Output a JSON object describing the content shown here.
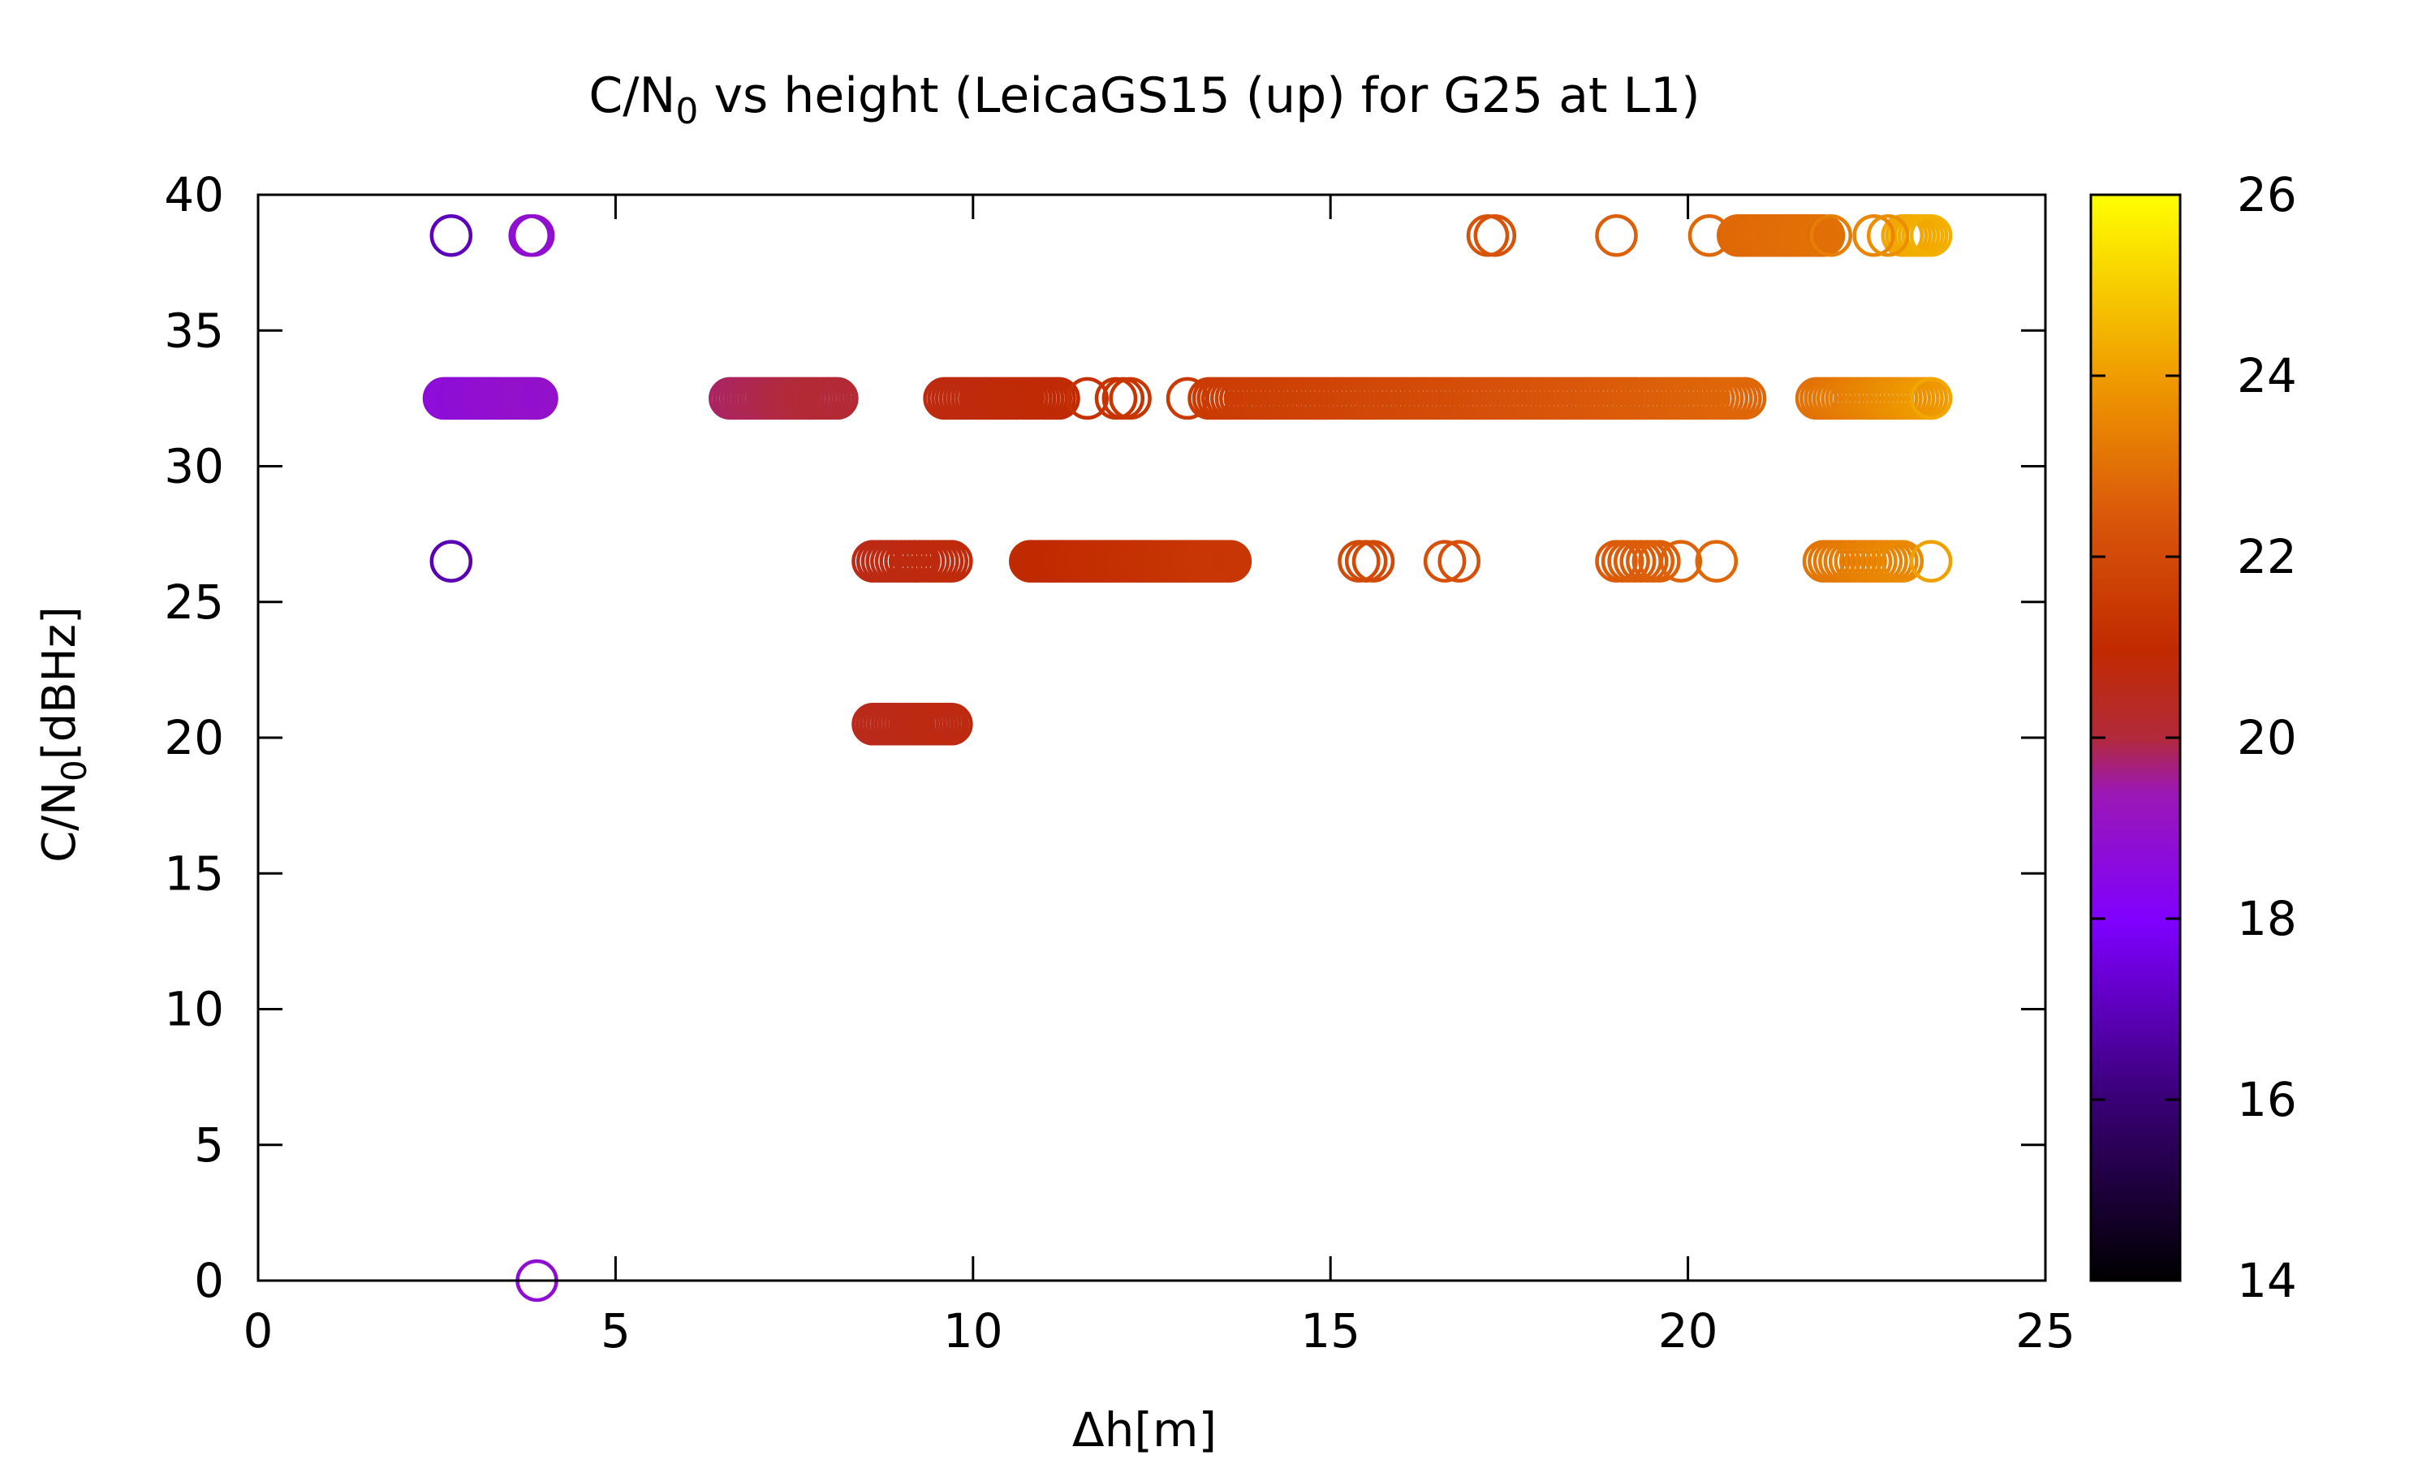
{
  "chart_data": {
    "type": "scatter",
    "title": "C/N₀ vs height (LeicaGS15 (up) for G25 at L1)",
    "title_parts": {
      "prefix": "C/N",
      "subscript": "0",
      "suffix": " vs height (LeicaGS15 (up) for G25 at L1)"
    },
    "xlabel": "Δh[m]",
    "ylabel": "C/N₀[dBHz]",
    "ylabel_parts": {
      "prefix": "C/N",
      "subscript": "0",
      "suffix": "[dBHz]"
    },
    "xlim": [
      0,
      25
    ],
    "ylim": [
      0,
      40
    ],
    "x_ticks": [
      0,
      5,
      10,
      15,
      20,
      25
    ],
    "y_ticks": [
      0,
      5,
      10,
      15,
      20,
      25,
      30,
      35,
      40
    ],
    "grid": false,
    "marker": "open-circle",
    "colorbar": {
      "range": [
        14,
        26
      ],
      "ticks": [
        14,
        16,
        18,
        20,
        22,
        24,
        26
      ],
      "palette": [
        {
          "pos": 0.0,
          "color": "#000000"
        },
        {
          "pos": 0.17,
          "color": "#3a0078"
        },
        {
          "pos": 0.33,
          "color": "#7f00ff"
        },
        {
          "pos": 0.45,
          "color": "#9b18b4"
        },
        {
          "pos": 0.5,
          "color": "#b22a3a"
        },
        {
          "pos": 0.58,
          "color": "#c12a00"
        },
        {
          "pos": 0.7,
          "color": "#d9560a"
        },
        {
          "pos": 0.83,
          "color": "#ef9a00"
        },
        {
          "pos": 1.0,
          "color": "#ffff00"
        }
      ]
    },
    "segments": [
      {
        "y": 32.5,
        "x_start": 2.6,
        "x_end": 3.9,
        "n": 30,
        "c_start": 18.7,
        "c_end": 19.0
      },
      {
        "y": 32.5,
        "x_start": 6.6,
        "x_end": 8.1,
        "n": 30,
        "c_start": 19.8,
        "c_end": 20.1
      },
      {
        "y": 32.5,
        "x_start": 9.6,
        "x_end": 11.2,
        "n": 30,
        "c_start": 20.7,
        "c_end": 20.9
      },
      {
        "y": 32.5,
        "x_start": 13.3,
        "x_end": 20.8,
        "n": 120,
        "c_start": 21.5,
        "c_end": 22.8
      },
      {
        "y": 32.5,
        "x_start": 21.8,
        "x_end": 23.4,
        "n": 28,
        "c_start": 23.0,
        "c_end": 24.0
      },
      {
        "y": 26.5,
        "x_start": 8.6,
        "x_end": 9.7,
        "n": 18,
        "c_start": 20.6,
        "c_end": 20.8
      },
      {
        "y": 26.5,
        "x_start": 10.8,
        "x_end": 13.6,
        "n": 60,
        "c_start": 20.9,
        "c_end": 21.4
      },
      {
        "y": 26.5,
        "x_start": 19.0,
        "x_end": 19.6,
        "n": 8,
        "c_start": 22.5,
        "c_end": 22.6
      },
      {
        "y": 26.5,
        "x_start": 21.9,
        "x_end": 23.0,
        "n": 16,
        "c_start": 23.1,
        "c_end": 23.6
      },
      {
        "y": 20.5,
        "x_start": 8.6,
        "x_end": 9.7,
        "n": 22,
        "c_start": 20.5,
        "c_end": 20.7
      },
      {
        "y": 38.5,
        "x_start": 20.7,
        "x_end": 21.9,
        "n": 26,
        "c_start": 22.8,
        "c_end": 23.0
      },
      {
        "y": 38.5,
        "x_start": 23.0,
        "x_end": 23.4,
        "n": 8,
        "c_start": 24.2,
        "c_end": 24.4
      }
    ],
    "points": [
      {
        "x": 2.7,
        "y": 38.5,
        "c": 17.0
      },
      {
        "x": 3.8,
        "y": 38.5,
        "c": 18.8
      },
      {
        "x": 3.85,
        "y": 38.5,
        "c": 18.9
      },
      {
        "x": 17.2,
        "y": 38.5,
        "c": 22.3
      },
      {
        "x": 17.3,
        "y": 38.5,
        "c": 22.3
      },
      {
        "x": 19.0,
        "y": 38.5,
        "c": 22.6
      },
      {
        "x": 20.3,
        "y": 38.5,
        "c": 22.8
      },
      {
        "x": 22.0,
        "y": 38.5,
        "c": 23.3
      },
      {
        "x": 22.6,
        "y": 38.5,
        "c": 23.5
      },
      {
        "x": 22.8,
        "y": 38.5,
        "c": 23.7
      },
      {
        "x": 11.6,
        "y": 32.5,
        "c": 21.2
      },
      {
        "x": 12.0,
        "y": 32.5,
        "c": 21.3
      },
      {
        "x": 12.1,
        "y": 32.5,
        "c": 21.3
      },
      {
        "x": 12.2,
        "y": 32.5,
        "c": 21.4
      },
      {
        "x": 13.0,
        "y": 32.5,
        "c": 21.5
      },
      {
        "x": 23.4,
        "y": 32.5,
        "c": 24.2
      },
      {
        "x": 2.7,
        "y": 26.5,
        "c": 16.9
      },
      {
        "x": 9.2,
        "y": 26.5,
        "c": 20.7
      },
      {
        "x": 15.4,
        "y": 26.5,
        "c": 22.0
      },
      {
        "x": 15.5,
        "y": 26.5,
        "c": 22.0
      },
      {
        "x": 15.6,
        "y": 26.5,
        "c": 22.0
      },
      {
        "x": 16.6,
        "y": 26.5,
        "c": 22.2
      },
      {
        "x": 16.8,
        "y": 26.5,
        "c": 22.2
      },
      {
        "x": 19.9,
        "y": 26.5,
        "c": 22.7
      },
      {
        "x": 20.4,
        "y": 26.5,
        "c": 22.8
      },
      {
        "x": 23.4,
        "y": 26.5,
        "c": 24.1
      },
      {
        "x": 9.6,
        "y": 20.5,
        "c": 20.7
      },
      {
        "x": 3.9,
        "y": 0,
        "c": 18.8
      }
    ]
  }
}
